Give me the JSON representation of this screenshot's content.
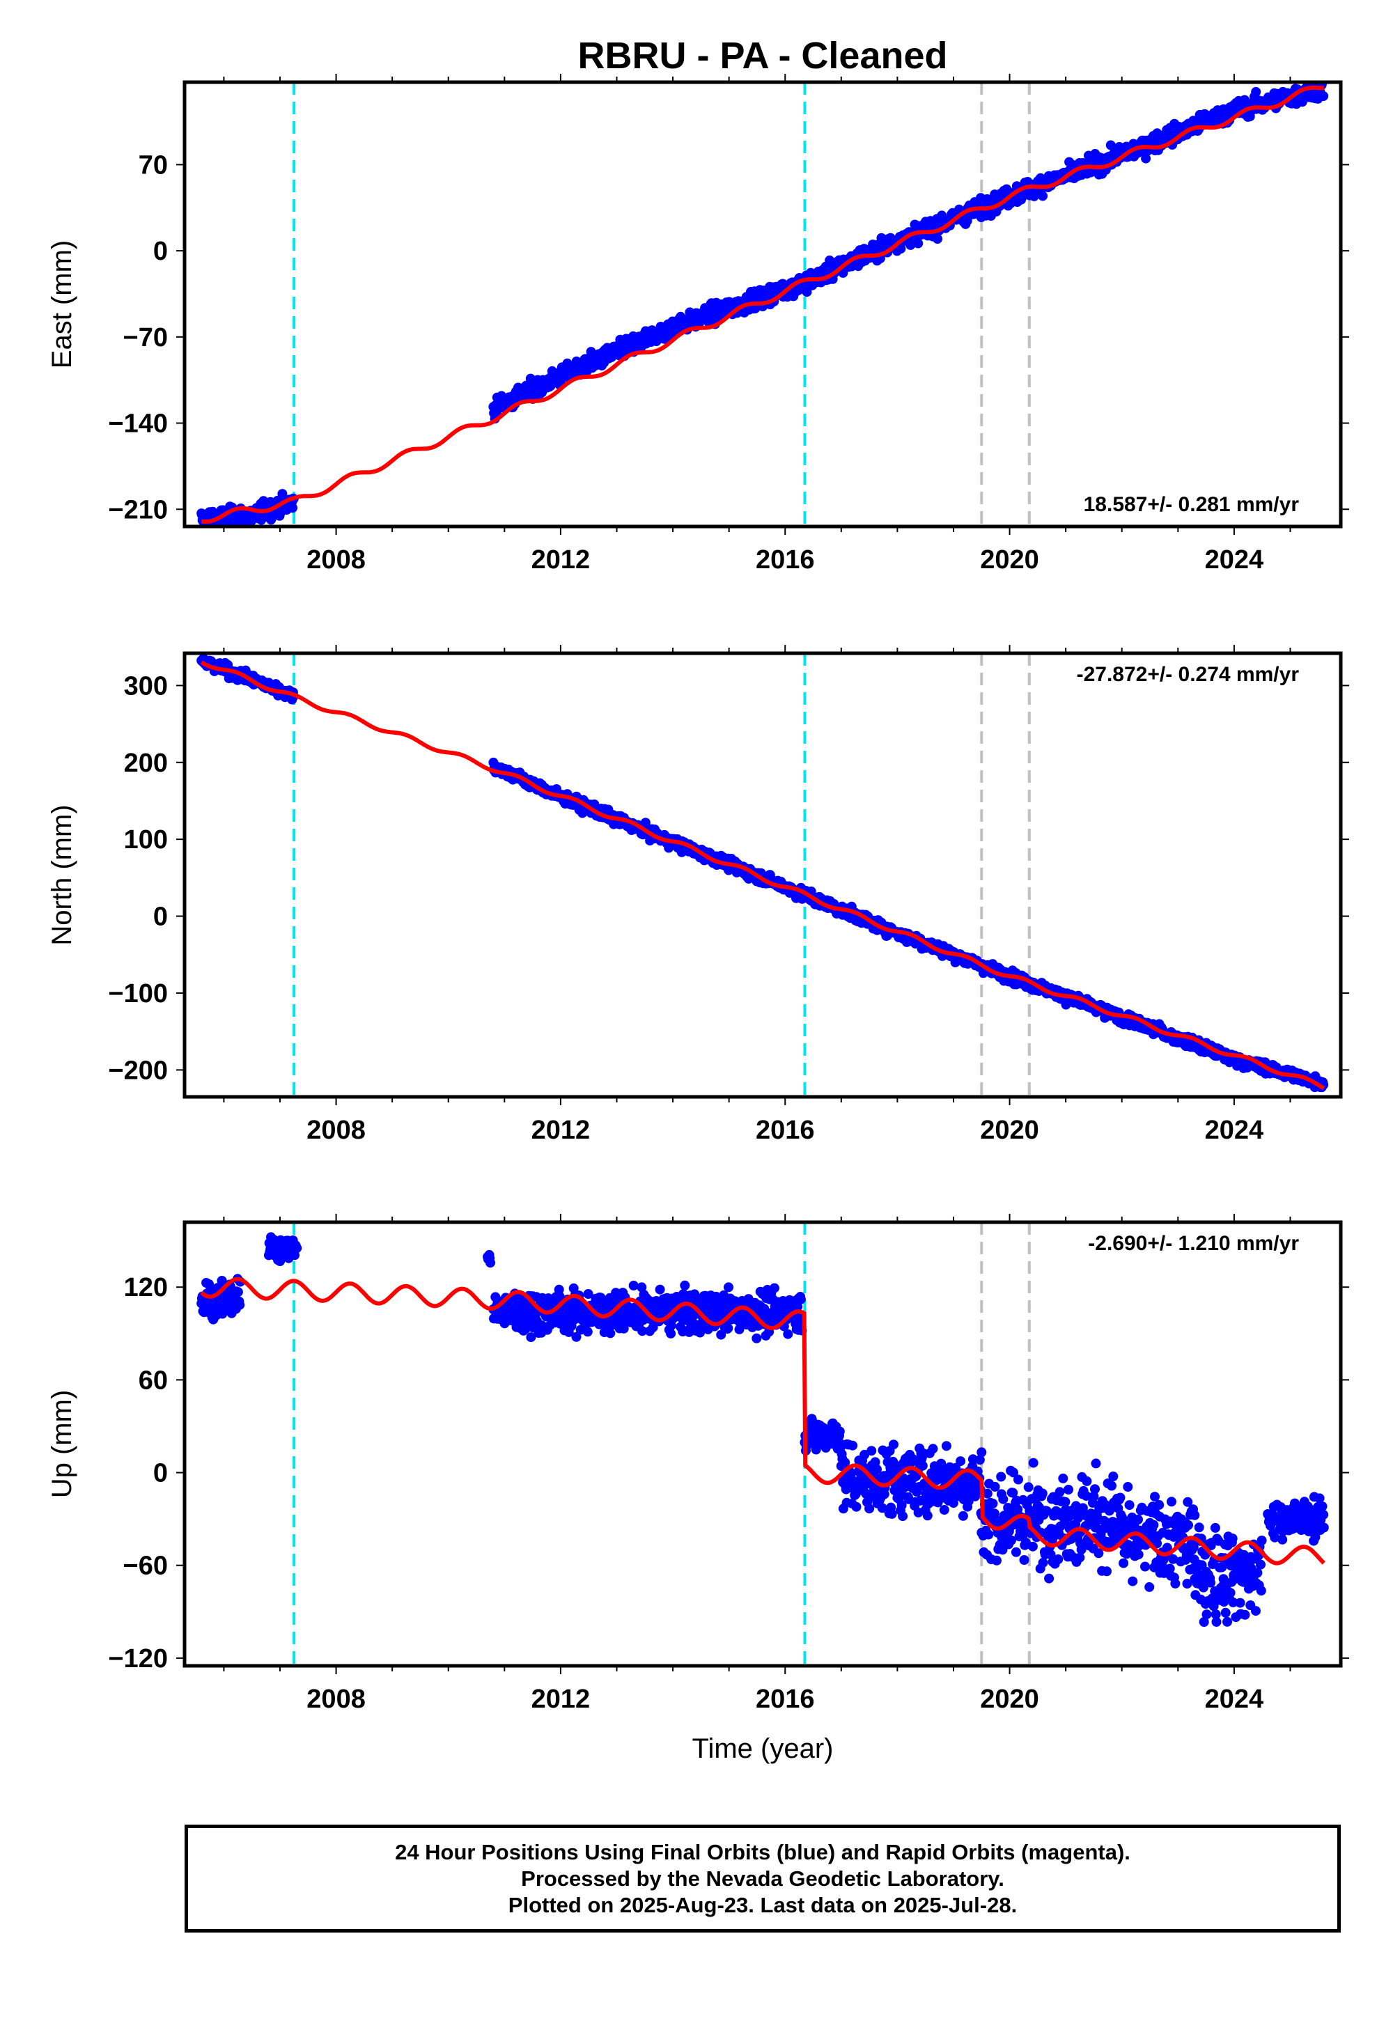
{
  "title": "RBRU  - PA - Cleaned",
  "xlabel": "Time (year)",
  "footer": {
    "line1": "24 Hour Positions Using Final Orbits (blue) and Rapid Orbits (magenta).",
    "line2": "Processed by the Nevada Geodetic Laboratory.",
    "line3": "Plotted on 2025-Aug-23. Last data on 2025-Jul-28."
  },
  "colors": {
    "final_orbits": "#0000ff",
    "model": "#ff0000",
    "equipment_change": "#00e5ee",
    "other_event": "#c0c0c0"
  },
  "chart_data": [
    {
      "type": "scatter",
      "ylabel": "East (mm)",
      "rate": "18.587+/- 0.281 mm/yr",
      "rate_position": "bottom-right",
      "xlim": [
        2005.3,
        2025.9
      ],
      "ylim": [
        -224,
        137
      ],
      "xticks": [
        2008,
        2012,
        2016,
        2020,
        2024
      ],
      "yticks": [
        -210,
        -140,
        -70,
        0,
        70
      ],
      "equipment_change_years": [
        2007.25,
        2016.35
      ],
      "other_event_years": [
        2019.5,
        2020.35
      ],
      "gap": [
        2007.25,
        2010.8
      ],
      "trend": {
        "t0": 2016.0,
        "y0": -28.0,
        "slope": 18.587
      },
      "noise": 5,
      "series": [
        {
          "kind": "points",
          "x": [
            2005.6,
            2006.5,
            2007.2,
            2010.8,
            2012,
            2014,
            2016.3,
            2018,
            2020,
            2022,
            2024,
            2025.6
          ],
          "y": [
            -218,
            -215,
            -205,
            -128,
            -102,
            -62,
            -27,
            8,
            44,
            78,
            114,
            132
          ]
        },
        {
          "kind": "model",
          "x": [
            2005.6,
            2007.25,
            2010.8,
            2016.3,
            2020,
            2025.6
          ],
          "y": [
            -218,
            -204,
            -136,
            -27,
            44,
            134
          ]
        }
      ]
    },
    {
      "type": "scatter",
      "ylabel": "North (mm)",
      "rate": "-27.872+/- 0.274 mm/yr",
      "rate_position": "top-right",
      "xlim": [
        2005.3,
        2025.9
      ],
      "ylim": [
        -235,
        342
      ],
      "xticks": [
        2008,
        2012,
        2016,
        2020,
        2024
      ],
      "yticks": [
        -200,
        -100,
        0,
        100,
        200,
        300
      ],
      "equipment_change_years": [
        2007.25,
        2016.35
      ],
      "other_event_years": [
        2019.5,
        2020.35
      ],
      "gap": [
        2007.25,
        2010.8
      ],
      "trend": {
        "t0": 2016.0,
        "y0": 38.0,
        "slope": -27.872
      },
      "noise": 5,
      "series": [
        {
          "kind": "points",
          "x": [
            2005.6,
            2007.2,
            2010.8,
            2012,
            2014,
            2016,
            2018,
            2020,
            2022,
            2024,
            2025.6
          ],
          "y": [
            332,
            288,
            195,
            155,
            96,
            38,
            -22,
            -78,
            -132,
            -186,
            -218
          ]
        },
        {
          "kind": "model",
          "x": [
            2005.6,
            2007.25,
            2010.8,
            2016,
            2020,
            2025.6
          ],
          "y": [
            332,
            285,
            192,
            38,
            -78,
            -222
          ]
        }
      ]
    },
    {
      "type": "scatter",
      "ylabel": "Up (mm)",
      "rate": "-2.690+/- 1.210 mm/yr",
      "rate_position": "top-right",
      "xlim": [
        2005.3,
        2025.9
      ],
      "ylim": [
        -125,
        162
      ],
      "xticks": [
        2008,
        2012,
        2016,
        2020,
        2024
      ],
      "yticks": [
        -120,
        -60,
        0,
        60,
        120
      ],
      "equipment_change_years": [
        2007.25,
        2016.35
      ],
      "other_event_years": [
        2019.5,
        2020.35
      ],
      "series": [
        {
          "kind": "points",
          "segments": [
            {
              "x0": 2005.6,
              "x1": 2006.3,
              "mean": 112,
              "noise": 8
            },
            {
              "x0": 2006.8,
              "x1": 2007.3,
              "mean": 145,
              "noise": 5
            },
            {
              "x0": 2010.7,
              "x1": 2010.75,
              "mean": 139,
              "noise": 2
            },
            {
              "x0": 2010.8,
              "x1": 2016.3,
              "mean": 104,
              "noise": 9
            },
            {
              "x0": 2016.35,
              "x1": 2017.0,
              "mean": 25,
              "noise": 8
            },
            {
              "x0": 2017.0,
              "x1": 2019.5,
              "mean": -5,
              "noise": 16
            },
            {
              "x0": 2019.5,
              "x1": 2022.0,
              "mean": -30,
              "noise": 20
            },
            {
              "x0": 2022.0,
              "x1": 2023.3,
              "mean": -45,
              "noise": 20
            },
            {
              "x0": 2023.3,
              "x1": 2024.5,
              "mean": -65,
              "noise": 20
            },
            {
              "x0": 2024.6,
              "x1": 2025.6,
              "mean": -30,
              "noise": 8
            }
          ]
        },
        {
          "kind": "model",
          "x": [
            2005.6,
            2007.25,
            2010.8,
            2016.35,
            2016.36,
            2019.5,
            2019.51,
            2020.35,
            2020.36,
            2025.6
          ],
          "y": [
            120,
            118,
            112,
            98,
            0,
            -5,
            -28,
            -35,
            -40,
            -55
          ],
          "seasonal_amplitude": 6
        }
      ]
    }
  ]
}
